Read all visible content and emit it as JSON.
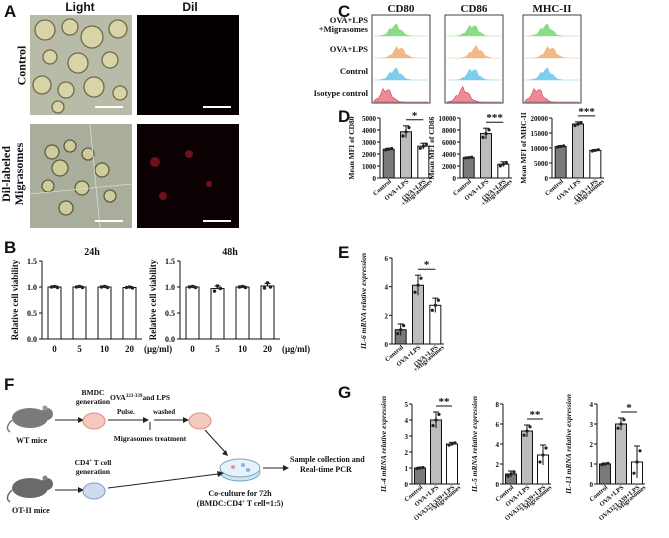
{
  "panels": {
    "A": "A",
    "B": "B",
    "C": "C",
    "D": "D",
    "E": "E",
    "F": "F",
    "G": "G"
  },
  "panelA": {
    "col_light": "Light",
    "col_dil": "Dil",
    "row_control": "Control",
    "row_migra_l1": "Dil-labeled",
    "row_migra_l2": "Migrasomes"
  },
  "panelB": {
    "ylabel": "Relative cell viability",
    "unit": "(μg/ml)",
    "charts": [
      {
        "title": "24h",
        "categories": [
          "0",
          "5",
          "10",
          "20"
        ],
        "values": [
          1.0,
          1.0,
          1.0,
          0.99
        ],
        "errors": [
          0.02,
          0.02,
          0.02,
          0.02
        ],
        "points": [
          [
            1.0,
            1.01,
            0.99
          ],
          [
            1.0,
            1.01,
            0.99
          ],
          [
            1.0,
            1.01,
            0.99
          ],
          [
            0.99,
            1.0,
            0.98
          ]
        ]
      },
      {
        "title": "48h",
        "categories": [
          "0",
          "5",
          "10",
          "20"
        ],
        "values": [
          1.0,
          0.97,
          1.0,
          1.02
        ],
        "errors": [
          0.02,
          0.05,
          0.02,
          0.05
        ],
        "points": [
          [
            1.0,
            1.01,
            0.99
          ],
          [
            0.92,
            1.02,
            0.97
          ],
          [
            1.0,
            1.01,
            0.99
          ],
          [
            0.98,
            1.08,
            1.0
          ]
        ]
      }
    ],
    "yticks": [
      "0.0",
      "0.5",
      "1.0",
      "1.5"
    ],
    "ylim": [
      0,
      1.5
    ]
  },
  "panelC": {
    "headers": [
      "CD80",
      "CD86",
      "MHC-II"
    ],
    "rows": [
      {
        "label_l1": "OVA+LPS",
        "label_l2": "+Migrasomes",
        "color": "#7ed97a"
      },
      {
        "label_l1": "OVA+LPS",
        "label_l2": "",
        "color": "#f0b27a"
      },
      {
        "label_l1": "Control",
        "label_l2": "",
        "color": "#6fc8ec"
      },
      {
        "label_l1": "Isotype control",
        "label_l2": "",
        "color": "#f07c8a"
      }
    ]
  },
  "chart_data": [
    {
      "type": "bar",
      "panel": "D",
      "ylabel": "Mean MFI of CD80",
      "categories": [
        "Control",
        "OVA+LPS",
        "OVA+LPS +Migrasomes"
      ],
      "values": [
        2400,
        3850,
        2650
      ],
      "errors": [
        80,
        500,
        250
      ],
      "ylim": [
        0,
        5000
      ],
      "yticks": [
        "0",
        "1000",
        "2000",
        "3000",
        "4000",
        "5000"
      ],
      "sig": "*"
    },
    {
      "type": "bar",
      "panel": "D",
      "ylabel": "Mean MFI of CD86",
      "categories": [
        "Control",
        "OVA+LPS",
        "OVA+LPS +Migrasomes"
      ],
      "values": [
        3400,
        7400,
        2300
      ],
      "errors": [
        80,
        900,
        400
      ],
      "ylim": [
        0,
        10000
      ],
      "yticks": [
        "0",
        "2000",
        "4000",
        "6000",
        "8000",
        "10000"
      ],
      "sig": "***"
    },
    {
      "type": "bar",
      "panel": "D",
      "ylabel": "Mean MFI of MHC-II",
      "categories": [
        "Control",
        "OVA+LPS",
        "OVA+LPS +Migrasomes"
      ],
      "values": [
        10500,
        18000,
        9200
      ],
      "errors": [
        300,
        700,
        300
      ],
      "ylim": [
        0,
        20000
      ],
      "yticks": [
        "0",
        "5000",
        "10000",
        "15000",
        "20000"
      ],
      "sig": "***"
    },
    {
      "type": "bar",
      "panel": "E",
      "ylabel": "IL-6 mRNA relative expression",
      "categories": [
        "Control",
        "OVA+LPS",
        "OVA+LPS +Migrasomes"
      ],
      "values": [
        1.0,
        4.1,
        2.7
      ],
      "errors": [
        0.4,
        0.7,
        0.5
      ],
      "ylim": [
        0,
        6
      ],
      "yticks": [
        "0",
        "2",
        "4",
        "6"
      ],
      "sig": "*"
    },
    {
      "type": "bar",
      "panel": "G",
      "ylabel": "IL-4 mRNA relative expression",
      "categories": [
        "Control",
        "OVA+LPS",
        "OVA323-339+LPS +Migrasomes"
      ],
      "values": [
        1.0,
        4.0,
        2.5
      ],
      "errors": [
        0.05,
        0.5,
        0.1
      ],
      "ylim": [
        0,
        5
      ],
      "yticks": [
        "0",
        "1",
        "2",
        "3",
        "4",
        "5"
      ],
      "sig": "**"
    },
    {
      "type": "bar",
      "panel": "G",
      "ylabel": "IL-5 mRNA relative expression",
      "categories": [
        "Control",
        "OVA+LPS",
        "OVA323-339+LPS +Migrasomes"
      ],
      "values": [
        1.0,
        5.3,
        2.9
      ],
      "errors": [
        0.3,
        0.6,
        1.0
      ],
      "ylim": [
        0,
        8
      ],
      "yticks": [
        "0",
        "2",
        "4",
        "6",
        "8"
      ],
      "sig": "**"
    },
    {
      "type": "bar",
      "panel": "G",
      "ylabel": "IL-13 mRNA relative expression",
      "categories": [
        "Control",
        "OVA+LPS",
        "OVA323-339+LPS +Migrasomes"
      ],
      "values": [
        1.0,
        3.0,
        1.1
      ],
      "errors": [
        0.05,
        0.3,
        0.8
      ],
      "ylim": [
        0,
        4
      ],
      "yticks": [
        "0",
        "1",
        "2",
        "3",
        "4"
      ],
      "sig": "*"
    }
  ],
  "panelF": {
    "wt_mice": "WT mice",
    "ot_mice": "OT-II mice",
    "bmdc_l1": "BMDC",
    "bmdc_l2": "generation",
    "ova_line": "OVA",
    "ova_sup": "323-339",
    "ova_rest": "and LPS",
    "pulse": "Pulse.",
    "washed": "washed",
    "migra_treat": "Migrasomes treatment",
    "cd4_l1": "CD4",
    "cd4_sup": "+",
    "cd4_l1b": " T cell",
    "cd4_l2": "generation",
    "coculture_l1": "Co-culture for 72h",
    "coculture_l2": "(BMDC:CD4",
    "coculture_sup": "+",
    "coculture_l2b": " T cell=1:5)",
    "sample_l1": "Sample collection and",
    "sample_l2": "Real-time PCR"
  }
}
